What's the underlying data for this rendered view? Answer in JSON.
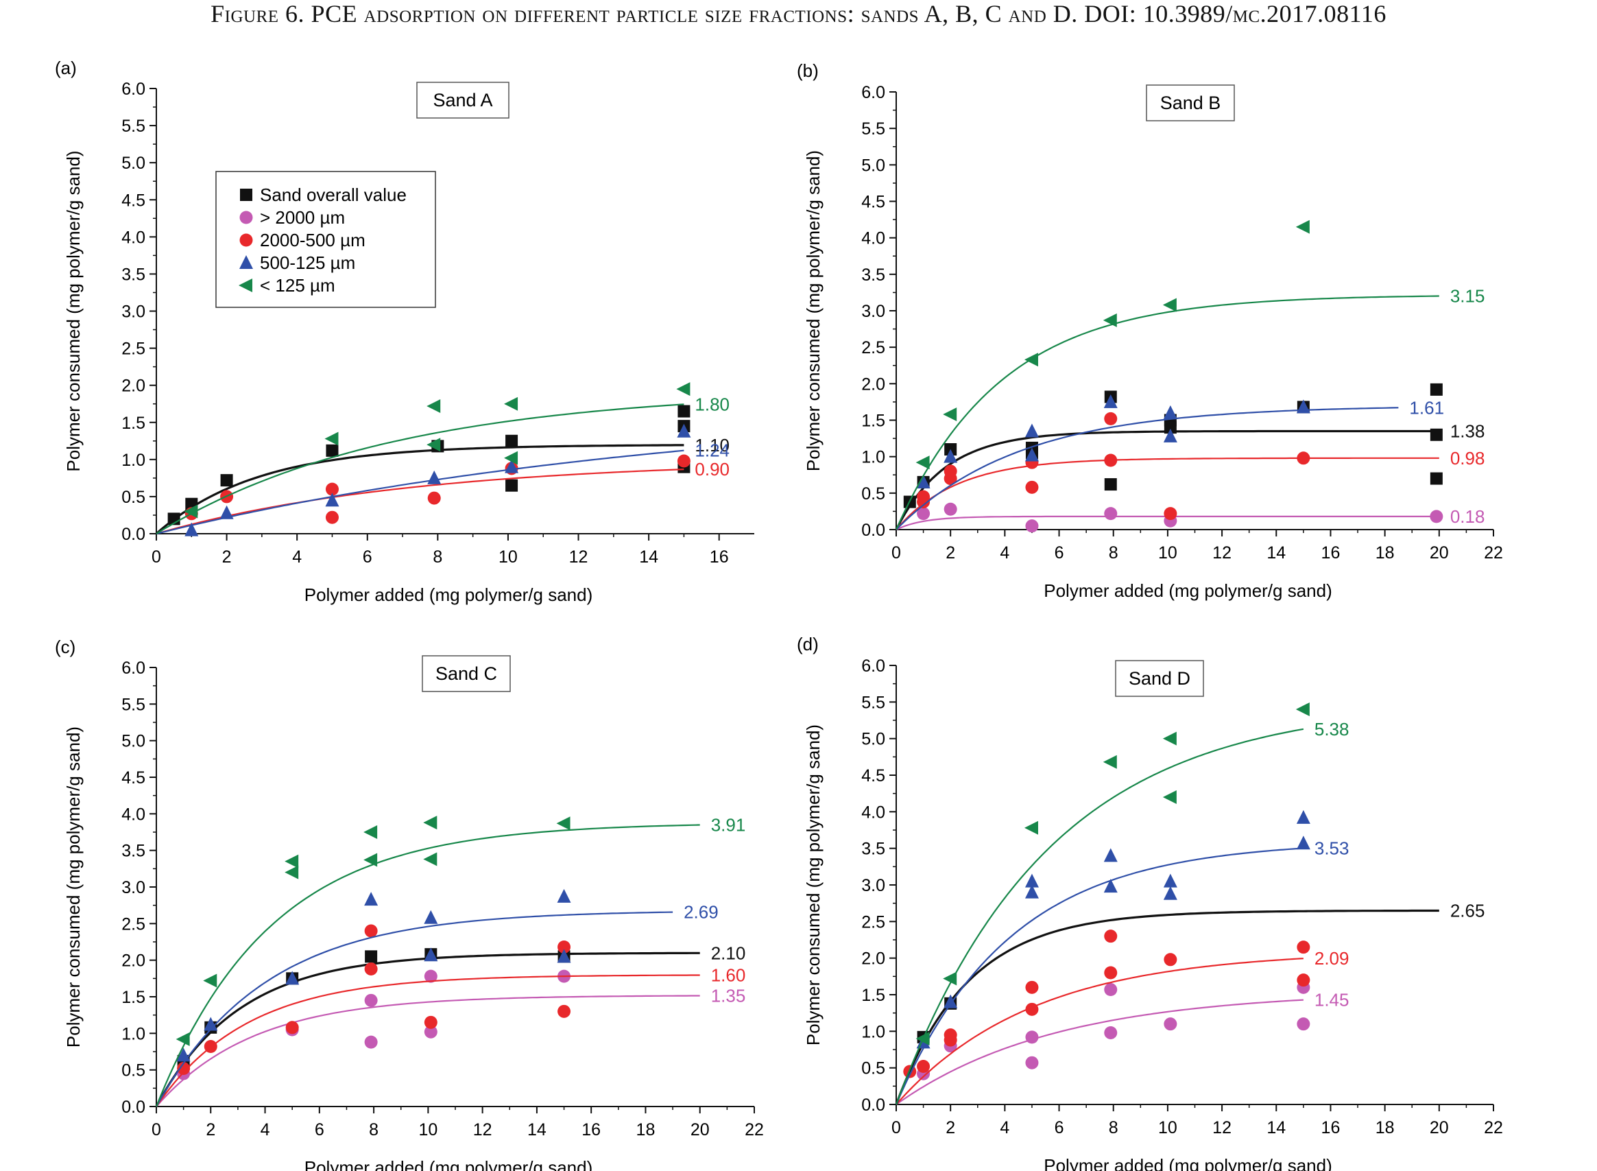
{
  "figure": {
    "caption": "Figure 6. PCE adsorption on different particle size fractions: sands A, B, C and D. DOI: 10.3989/mc.2017.08116"
  },
  "legend": {
    "entries": [
      {
        "key": "overall",
        "label": "Sand overall value"
      },
      {
        "key": "gt2000",
        "label": "> 2000 µm"
      },
      {
        "key": "r2000_500",
        "label": "2000-500 µm"
      },
      {
        "key": "r500_125",
        "label": "500-125 µm"
      },
      {
        "key": "lt125",
        "label": "< 125 µm"
      }
    ]
  },
  "colors": {
    "overall": "#111111",
    "gt2000": "#c45ab3",
    "r2000_500": "#e8282b",
    "r500_125": "#2f4fa8",
    "lt125": "#17874a"
  },
  "markers": {
    "overall": "square",
    "gt2000": "circle",
    "r2000_500": "circle",
    "r500_125": "triangle-up",
    "lt125": "triangle-left"
  },
  "chart_data": [
    {
      "type": "scatter",
      "panel_label": "(a)",
      "title": "Sand A",
      "xlabel": "Polymer added (mg polymer/g sand)",
      "ylabel": "Polymer consumed (mg polymer/g sand)",
      "xlim": [
        0,
        17
      ],
      "ylim": [
        0,
        6
      ],
      "xticks": [
        0,
        2,
        4,
        6,
        8,
        10,
        12,
        14,
        16
      ],
      "yticks": [
        "0.0",
        "0.5",
        "1.0",
        "1.5",
        "2.0",
        "2.5",
        "3.0",
        "3.5",
        "4.0",
        "4.5",
        "5.0",
        "5.5",
        "6.0"
      ],
      "legend": "upper-left",
      "series": [
        {
          "key": "overall",
          "points": [
            [
              0.5,
              0.2
            ],
            [
              1,
              0.4
            ],
            [
              2,
              0.72
            ],
            [
              5,
              1.12
            ],
            [
              8,
              1.18
            ],
            [
              10.1,
              1.25
            ],
            [
              10.1,
              0.65
            ],
            [
              15,
              1.65
            ],
            [
              15,
              1.45
            ],
            [
              15,
              0.9
            ]
          ],
          "fit": {
            "xmax": 15,
            "plateau": 1.2,
            "k": 0.35
          },
          "end_label": "1.10"
        },
        {
          "key": "r2000_500",
          "points": [
            [
              1,
              0.27
            ],
            [
              2,
              0.5
            ],
            [
              5,
              0.22
            ],
            [
              5,
              0.6
            ],
            [
              7.9,
              0.48
            ],
            [
              10.1,
              0.88
            ],
            [
              15,
              0.98
            ]
          ],
          "fit": {
            "xmax": 15,
            "plateau": 1.0,
            "k": 0.135
          },
          "end_label": "0.90"
        },
        {
          "key": "r500_125",
          "points": [
            [
              1,
              0.05
            ],
            [
              2,
              0.28
            ],
            [
              5,
              0.45
            ],
            [
              7.9,
              0.75
            ],
            [
              10.1,
              0.9
            ],
            [
              15,
              1.38
            ]
          ],
          "fit": {
            "xmax": 15,
            "plateau": 1.8,
            "k": 0.065
          },
          "end_label": "1.24"
        },
        {
          "key": "lt125",
          "points": [
            [
              1,
              0.3
            ],
            [
              5,
              1.28
            ],
            [
              7.9,
              1.72
            ],
            [
              7.9,
              1.2
            ],
            [
              10.1,
              1.75
            ],
            [
              10.1,
              1.02
            ],
            [
              15,
              1.95
            ]
          ],
          "fit": {
            "xmax": 15,
            "plateau": 1.95,
            "k": 0.15
          },
          "end_label": "1.80"
        }
      ]
    },
    {
      "type": "scatter",
      "panel_label": "(b)",
      "title": "Sand B",
      "xlabel": "Polymer added (mg polymer/g sand)",
      "ylabel": "Polymer consumed (mg polymer/g sand)",
      "xlim": [
        0,
        22
      ],
      "ylim": [
        0,
        6
      ],
      "xticks": [
        0,
        2,
        4,
        6,
        8,
        10,
        12,
        14,
        16,
        18,
        20,
        22
      ],
      "yticks": [
        "0.0",
        "0.5",
        "1.0",
        "1.5",
        "2.0",
        "2.5",
        "3.0",
        "3.5",
        "4.0",
        "4.5",
        "5.0",
        "5.5",
        "6.0"
      ],
      "series": [
        {
          "key": "overall",
          "points": [
            [
              0.5,
              0.38
            ],
            [
              1,
              0.65
            ],
            [
              2,
              1.1
            ],
            [
              5,
              1.12
            ],
            [
              5,
              1.05
            ],
            [
              7.9,
              1.82
            ],
            [
              7.9,
              0.62
            ],
            [
              10.1,
              1.5
            ],
            [
              10.1,
              1.4
            ],
            [
              15,
              1.68
            ],
            [
              19.9,
              1.92
            ],
            [
              19.9,
              1.3
            ],
            [
              19.9,
              0.7
            ]
          ],
          "fit": {
            "xmax": 20,
            "plateau": 1.35,
            "k": 0.55
          },
          "end_label": "1.38"
        },
        {
          "key": "gt2000",
          "points": [
            [
              1,
              0.22
            ],
            [
              2,
              0.28
            ],
            [
              5,
              0.05
            ],
            [
              7.9,
              0.22
            ],
            [
              10.1,
              0.12
            ],
            [
              19.9,
              0.18
            ]
          ],
          "fit": {
            "xmax": 20,
            "plateau": 0.18,
            "k": 1.0
          },
          "end_label": "0.18"
        },
        {
          "key": "r2000_500",
          "points": [
            [
              1,
              0.45
            ],
            [
              1,
              0.38
            ],
            [
              2,
              0.8
            ],
            [
              2,
              0.7
            ],
            [
              5,
              0.92
            ],
            [
              5,
              0.58
            ],
            [
              7.9,
              1.52
            ],
            [
              7.9,
              0.95
            ],
            [
              10.1,
              0.22
            ],
            [
              15,
              0.98
            ]
          ],
          "fit": {
            "xmax": 20,
            "plateau": 0.98,
            "k": 0.45
          },
          "end_label": "0.98"
        },
        {
          "key": "r500_125",
          "points": [
            [
              1,
              0.65
            ],
            [
              2,
              1.0
            ],
            [
              5,
              1.35
            ],
            [
              5,
              1.02
            ],
            [
              7.9,
              1.75
            ],
            [
              10.1,
              1.6
            ],
            [
              10.1,
              1.28
            ],
            [
              15,
              1.68
            ]
          ],
          "fit": {
            "xmax": 18.5,
            "plateau": 1.7,
            "k": 0.22
          },
          "end_label": "1.61"
        },
        {
          "key": "lt125",
          "points": [
            [
              1,
              0.92
            ],
            [
              2,
              1.58
            ],
            [
              5,
              2.33
            ],
            [
              7.9,
              2.87
            ],
            [
              10.1,
              3.08
            ],
            [
              15,
              4.15
            ]
          ],
          "fit": {
            "xmax": 20,
            "plateau": 3.22,
            "k": 0.26
          },
          "end_label": "3.15"
        }
      ]
    },
    {
      "type": "scatter",
      "panel_label": "(c)",
      "title": "Sand C",
      "xlabel": "Polymer added (mg polymer/g sand)",
      "ylabel": "Polymer consumed (mg polymer/g sand)",
      "xlim": [
        0,
        22
      ],
      "ylim": [
        0,
        6
      ],
      "xticks": [
        0,
        2,
        4,
        6,
        8,
        10,
        12,
        14,
        16,
        18,
        20,
        22
      ],
      "yticks": [
        "0.0",
        "0.5",
        "1.0",
        "1.5",
        "2.0",
        "2.5",
        "3.0",
        "3.5",
        "4.0",
        "4.5",
        "5.0",
        "5.5",
        "6.0"
      ],
      "series": [
        {
          "key": "overall",
          "points": [
            [
              1,
              0.62
            ],
            [
              2,
              1.08
            ],
            [
              5,
              1.75
            ],
            [
              7.9,
              2.05
            ],
            [
              10.1,
              2.08
            ],
            [
              15,
              2.05
            ]
          ],
          "fit": {
            "xmax": 20,
            "plateau": 2.1,
            "k": 0.33
          },
          "end_label": "2.10"
        },
        {
          "key": "gt2000",
          "points": [
            [
              1,
              0.45
            ],
            [
              5,
              1.05
            ],
            [
              7.9,
              0.88
            ],
            [
              7.9,
              1.45
            ],
            [
              10.1,
              1.02
            ],
            [
              10.1,
              1.78
            ],
            [
              15,
              1.78
            ]
          ],
          "fit": {
            "xmax": 20,
            "plateau": 1.52,
            "k": 0.28
          },
          "end_label": "1.35"
        },
        {
          "key": "r2000_500",
          "points": [
            [
              1,
              0.52
            ],
            [
              2,
              0.82
            ],
            [
              5,
              1.08
            ],
            [
              7.9,
              2.4
            ],
            [
              7.9,
              1.88
            ],
            [
              10.1,
              1.15
            ],
            [
              15,
              2.18
            ],
            [
              15,
              1.3
            ]
          ],
          "fit": {
            "xmax": 20,
            "plateau": 1.8,
            "k": 0.3
          },
          "end_label": "1.60"
        },
        {
          "key": "r500_125",
          "points": [
            [
              1,
              0.7
            ],
            [
              2,
              1.12
            ],
            [
              5,
              1.75
            ],
            [
              7.9,
              2.83
            ],
            [
              10.1,
              2.58
            ],
            [
              10.1,
              2.07
            ],
            [
              15,
              2.87
            ],
            [
              15,
              2.05
            ]
          ],
          "fit": {
            "xmax": 19,
            "plateau": 2.68,
            "k": 0.25
          },
          "end_label": "2.69"
        },
        {
          "key": "lt125",
          "points": [
            [
              1,
              0.92
            ],
            [
              2,
              1.72
            ],
            [
              5,
              3.35
            ],
            [
              5,
              3.2
            ],
            [
              7.9,
              3.75
            ],
            [
              7.9,
              3.37
            ],
            [
              10.1,
              3.88
            ],
            [
              10.1,
              3.38
            ],
            [
              15,
              3.87
            ]
          ],
          "fit": {
            "xmax": 20,
            "plateau": 3.88,
            "k": 0.24
          },
          "end_label": "3.91"
        }
      ]
    },
    {
      "type": "scatter",
      "panel_label": "(d)",
      "title": "Sand D",
      "xlabel": "Polymer added (mg polymer/g sand)",
      "ylabel": "Polymer consumed (mg polymer/g sand)",
      "xlim": [
        0,
        22
      ],
      "ylim": [
        0,
        6
      ],
      "xticks": [
        0,
        2,
        4,
        6,
        8,
        10,
        12,
        14,
        16,
        18,
        20,
        22
      ],
      "yticks": [
        "0.0",
        "0.5",
        "1.0",
        "1.5",
        "2.0",
        "2.5",
        "3.0",
        "3.5",
        "4.0",
        "4.5",
        "5.0",
        "5.5",
        "6.0"
      ],
      "series": [
        {
          "key": "gt2000",
          "points": [
            [
              1,
              0.42
            ],
            [
              2,
              0.8
            ],
            [
              5,
              0.92
            ],
            [
              5,
              0.57
            ],
            [
              7.9,
              1.57
            ],
            [
              7.9,
              0.98
            ],
            [
              10.1,
              1.1
            ],
            [
              15,
              1.6
            ],
            [
              15,
              1.1
            ]
          ],
          "fit": {
            "xmax": 15,
            "plateau": 1.55,
            "k": 0.17
          },
          "end_label": "1.45"
        },
        {
          "key": "r2000_500",
          "points": [
            [
              0.5,
              0.45
            ],
            [
              1,
              0.52
            ],
            [
              2,
              0.95
            ],
            [
              2,
              0.88
            ],
            [
              5,
              1.6
            ],
            [
              5,
              1.3
            ],
            [
              7.9,
              2.3
            ],
            [
              7.9,
              1.8
            ],
            [
              10.1,
              1.98
            ],
            [
              15,
              2.15
            ],
            [
              15,
              1.7
            ]
          ],
          "fit": {
            "xmax": 15,
            "plateau": 2.1,
            "k": 0.2
          },
          "end_label": "2.09"
        },
        {
          "key": "overall",
          "points": [
            [
              1,
              0.92
            ],
            [
              2,
              1.38
            ]
          ],
          "fit": {
            "xmax": 20,
            "plateau": 2.65,
            "k": 0.38
          },
          "end_label": "2.65"
        },
        {
          "key": "r500_125",
          "points": [
            [
              1,
              0.85
            ],
            [
              2,
              1.4
            ],
            [
              5,
              3.05
            ],
            [
              5,
              2.9
            ],
            [
              7.9,
              3.4
            ],
            [
              7.9,
              2.98
            ],
            [
              10.1,
              3.05
            ],
            [
              10.1,
              2.88
            ],
            [
              15,
              3.92
            ],
            [
              15,
              3.57
            ]
          ],
          "fit": {
            "xmax": 15,
            "plateau": 3.6,
            "k": 0.24
          },
          "end_label": "3.53"
        },
        {
          "key": "lt125",
          "points": [
            [
              1,
              0.9
            ],
            [
              2,
              1.72
            ],
            [
              5,
              3.78
            ],
            [
              7.9,
              4.68
            ],
            [
              10.1,
              5.0
            ],
            [
              10.1,
              4.2
            ],
            [
              15,
              5.4
            ]
          ],
          "fit": {
            "xmax": 15,
            "plateau": 5.5,
            "k": 0.18
          },
          "end_label": "5.38"
        }
      ]
    }
  ]
}
